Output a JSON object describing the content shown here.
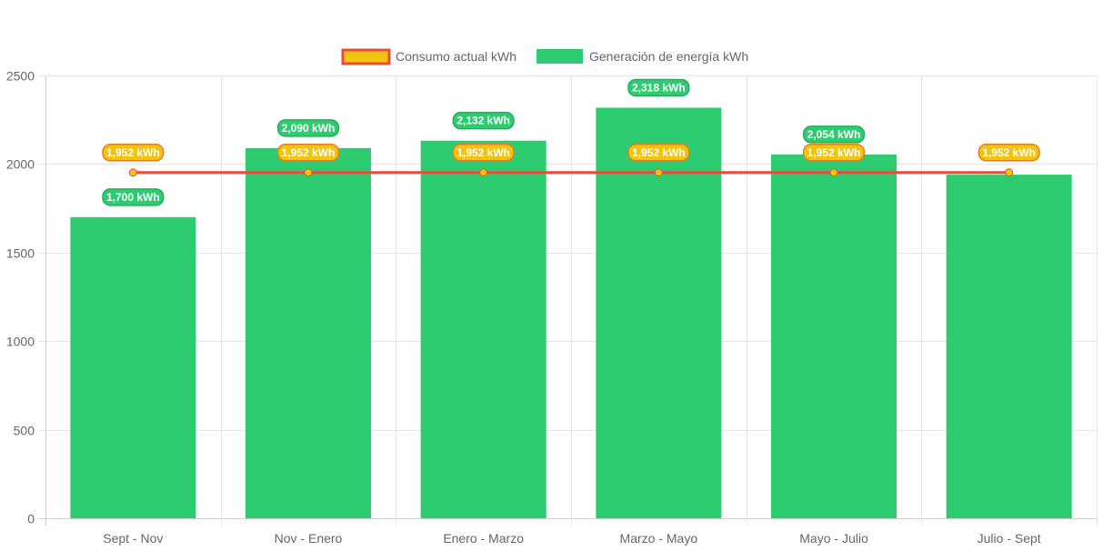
{
  "chart_data": {
    "type": "bar",
    "categories": [
      "Sept - Nov",
      "Nov - Enero",
      "Enero - Marzo",
      "Marzo - Mayo",
      "Mayo - Julio",
      "Julio - Sept"
    ],
    "series": [
      {
        "name": "Consumo actual kWh",
        "type": "line",
        "values": [
          1952,
          1952,
          1952,
          1952,
          1952,
          1952
        ],
        "data_labels": [
          "1,952 kWh",
          "1,952 kWh",
          "1,952 kWh",
          "1,952 kWh",
          "1,952 kWh",
          "1,952 kWh"
        ],
        "color": "#e74c3c",
        "fill_color": "#f1c40f"
      },
      {
        "name": "Generación de energía kWh",
        "type": "bar",
        "values": [
          1700,
          2090,
          2132,
          2318,
          2054,
          1940
        ],
        "data_labels": [
          "1,700 kWh",
          "2,090 kWh",
          "2,132 kWh",
          "2,318 kWh",
          "2,054 kWh",
          ""
        ],
        "color": "#2ecc71"
      }
    ],
    "yticks": [
      "0",
      "500",
      "1000",
      "1500",
      "2000",
      "2500"
    ],
    "ylim": [
      0,
      2500
    ],
    "grid": true,
    "legend_position": "top"
  }
}
